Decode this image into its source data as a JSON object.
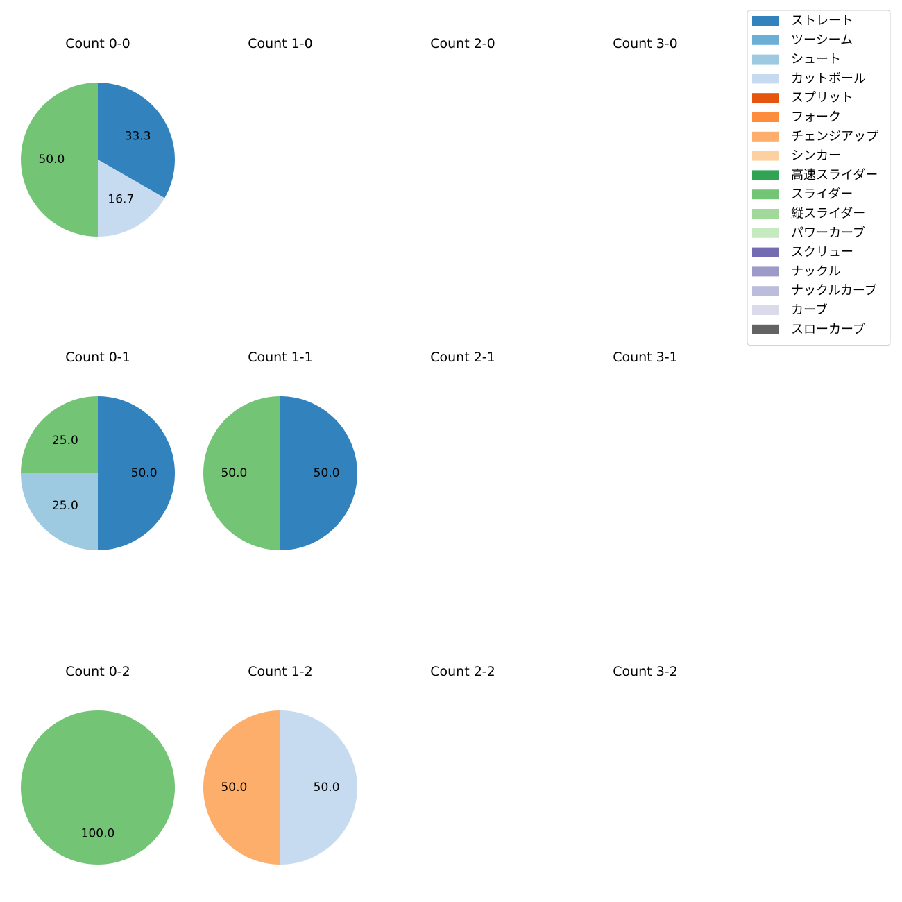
{
  "chart_data": {
    "type": "pie",
    "legend": {
      "placement": "top-right",
      "entries": [
        {
          "label": "ストレート",
          "color": "#3182bd"
        },
        {
          "label": "ツーシーム",
          "color": "#6baed6"
        },
        {
          "label": "シュート",
          "color": "#9ecae1"
        },
        {
          "label": "カットボール",
          "color": "#c6dbef"
        },
        {
          "label": "スプリット",
          "color": "#e6550d"
        },
        {
          "label": "フォーク",
          "color": "#fd8d3c"
        },
        {
          "label": "チェンジアップ",
          "color": "#fdae6b"
        },
        {
          "label": "シンカー",
          "color": "#fdd0a2"
        },
        {
          "label": "高速スライダー",
          "color": "#31a354"
        },
        {
          "label": "スライダー",
          "color": "#74c476"
        },
        {
          "label": "縦スライダー",
          "color": "#a1d99b"
        },
        {
          "label": "パワーカーブ",
          "color": "#c7e9c0"
        },
        {
          "label": "スクリュー",
          "color": "#756bb1"
        },
        {
          "label": "ナックル",
          "color": "#9e9ac8"
        },
        {
          "label": "ナックルカーブ",
          "color": "#bcbddc"
        },
        {
          "label": "カーブ",
          "color": "#dadaeb"
        },
        {
          "label": "スローカーブ",
          "color": "#636363"
        }
      ]
    },
    "panels": [
      {
        "title": "Count 0-0",
        "row": 0,
        "col": 0,
        "slices": [
          {
            "pitch": "ストレート",
            "value": 33.3,
            "label": "33.3"
          },
          {
            "pitch": "カットボール",
            "value": 16.7,
            "label": "16.7"
          },
          {
            "pitch": "スライダー",
            "value": 50.0,
            "label": "50.0"
          }
        ]
      },
      {
        "title": "Count 1-0",
        "row": 0,
        "col": 1,
        "slices": []
      },
      {
        "title": "Count 2-0",
        "row": 0,
        "col": 2,
        "slices": []
      },
      {
        "title": "Count 3-0",
        "row": 0,
        "col": 3,
        "slices": []
      },
      {
        "title": "Count 0-1",
        "row": 1,
        "col": 0,
        "slices": [
          {
            "pitch": "ストレート",
            "value": 50.0,
            "label": "50.0"
          },
          {
            "pitch": "シュート",
            "value": 25.0,
            "label": "25.0"
          },
          {
            "pitch": "スライダー",
            "value": 25.0,
            "label": "25.0"
          }
        ]
      },
      {
        "title": "Count 1-1",
        "row": 1,
        "col": 1,
        "slices": [
          {
            "pitch": "ストレート",
            "value": 50.0,
            "label": "50.0"
          },
          {
            "pitch": "スライダー",
            "value": 50.0,
            "label": "50.0"
          }
        ]
      },
      {
        "title": "Count 2-1",
        "row": 1,
        "col": 2,
        "slices": []
      },
      {
        "title": "Count 3-1",
        "row": 1,
        "col": 3,
        "slices": []
      },
      {
        "title": "Count 0-2",
        "row": 2,
        "col": 0,
        "slices": [
          {
            "pitch": "スライダー",
            "value": 100.0,
            "label": "100.0"
          }
        ]
      },
      {
        "title": "Count 1-2",
        "row": 2,
        "col": 1,
        "slices": [
          {
            "pitch": "カットボール",
            "value": 50.0,
            "label": "50.0"
          },
          {
            "pitch": "チェンジアップ",
            "value": 50.0,
            "label": "50.0"
          }
        ]
      },
      {
        "title": "Count 2-2",
        "row": 2,
        "col": 2,
        "slices": []
      },
      {
        "title": "Count 3-2",
        "row": 2,
        "col": 3,
        "slices": []
      }
    ]
  }
}
